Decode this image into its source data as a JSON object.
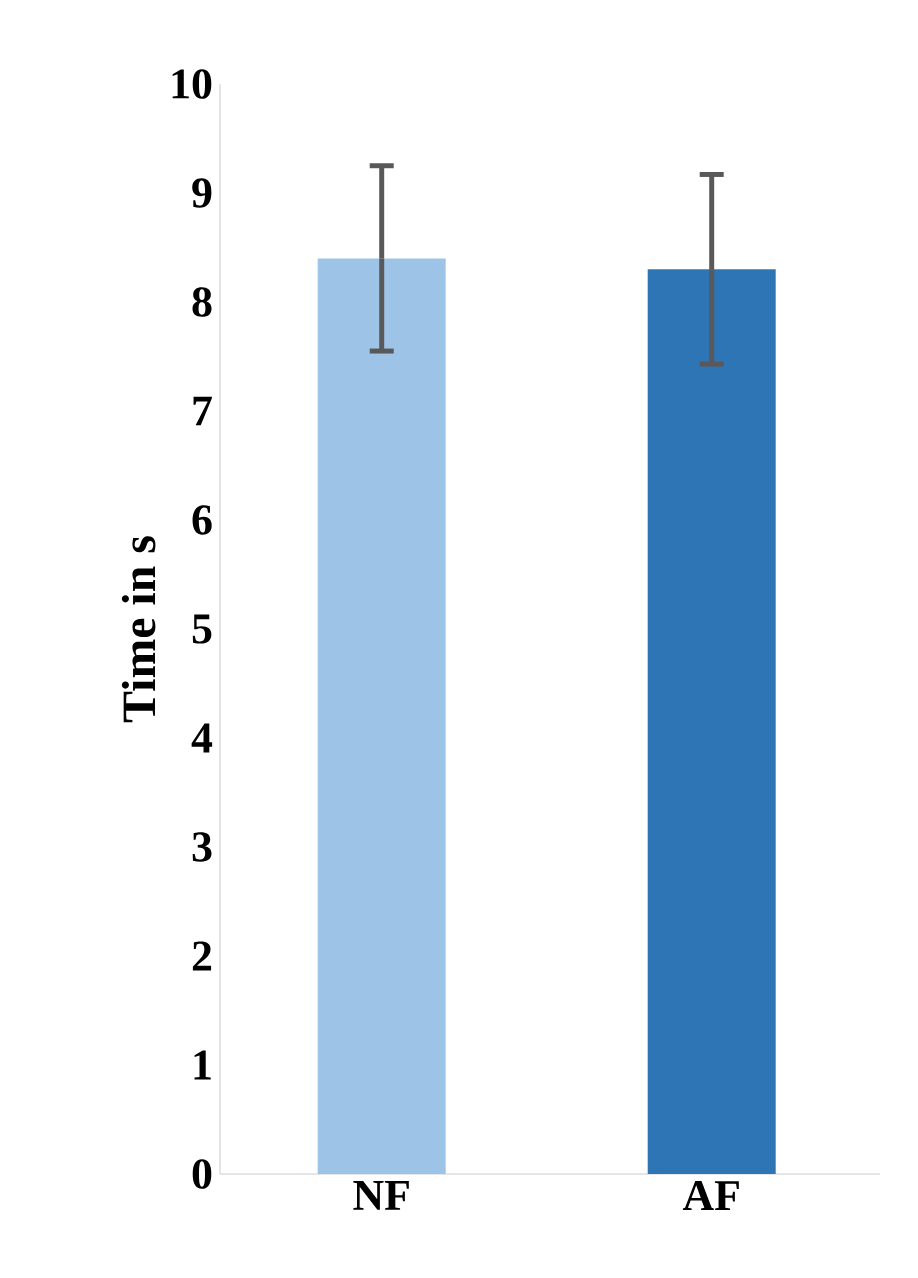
{
  "chart_data": {
    "type": "bar",
    "ylabel": "Time in s",
    "categories": [
      "NF",
      "AF"
    ],
    "values": [
      8.4,
      8.3
    ],
    "colors": [
      "#9dc3e6",
      "#2e75b6"
    ],
    "errors": [
      0.85,
      0.87
    ],
    "ylim": [
      0,
      10
    ],
    "yticks": [
      0,
      1,
      2,
      3,
      4,
      5,
      6,
      7,
      8,
      9,
      10
    ],
    "grid": false
  }
}
